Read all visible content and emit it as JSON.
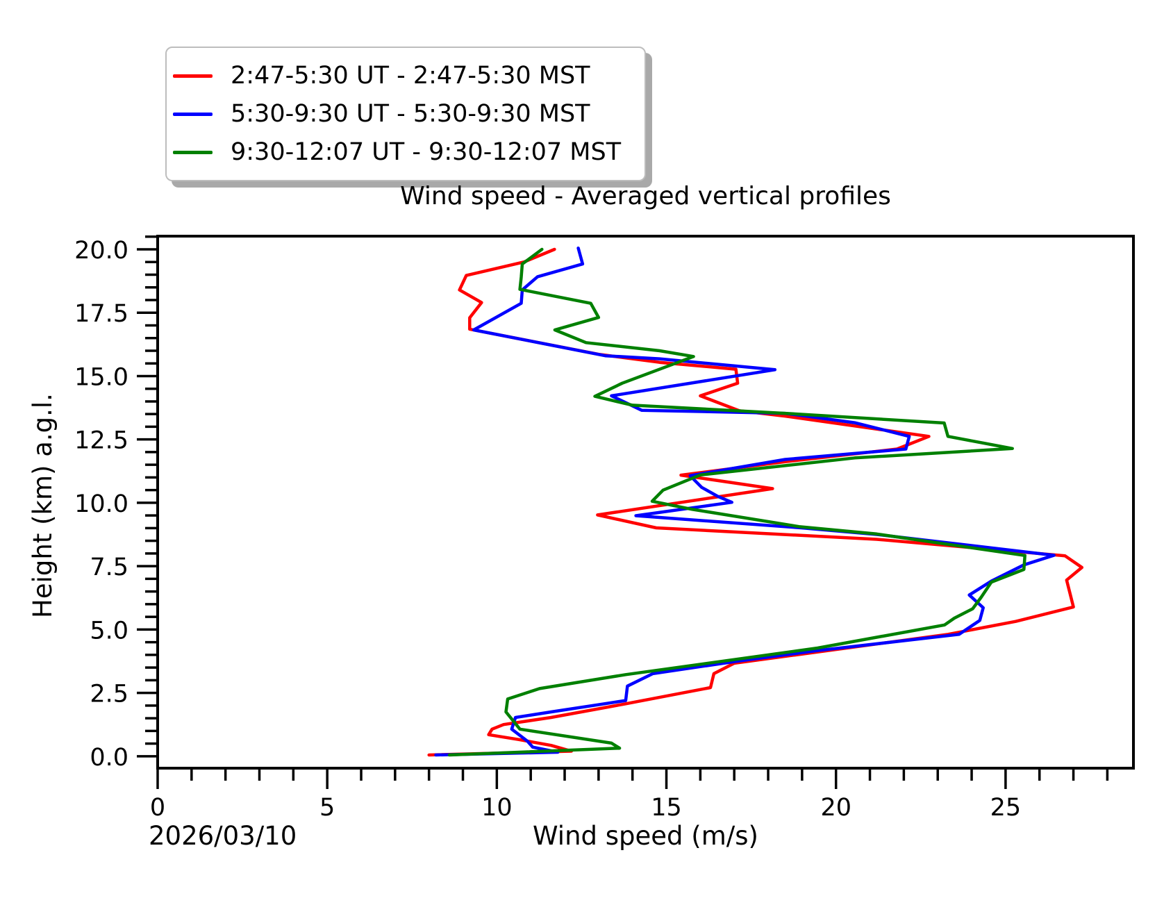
{
  "figure": {
    "title": "Wind speed - Averaged vertical profiles",
    "xlabel": "Wind speed (m/s)",
    "ylabel": "Height (km) a.g.l.",
    "date_label": "2026/03/10"
  },
  "legend": {
    "entries": [
      {
        "label": "2:47-5:30 UT - 2:47-5:30 MST",
        "color": "#ff0000"
      },
      {
        "label": "5:30-9:30 UT - 5:30-9:30 MST",
        "color": "#0000ff"
      },
      {
        "label": "9:30-12:07 UT - 9:30-12:07 MST",
        "color": "#008000"
      }
    ]
  },
  "chart_data": {
    "type": "line",
    "title": "Wind speed - Averaged vertical profiles",
    "xlabel": "Wind speed (m/s)",
    "ylabel": "Height (km) a.g.l.",
    "date": "2026/03/10",
    "xlim": [
      0,
      28.77
    ],
    "ylim": [
      -0.47,
      20.52
    ],
    "x_major_ticks": [
      0,
      5,
      10,
      15,
      20,
      25
    ],
    "x_minor_step": 1,
    "y_major_ticks": [
      0.0,
      2.5,
      5.0,
      7.5,
      10.0,
      12.5,
      15.0,
      17.5,
      20.0
    ],
    "y_minor_step": 0.5,
    "grid": false,
    "legend_position": "upper-left-outside",
    "series": [
      {
        "name": "2:47-5:30 UT - 2:47-5:30 MST",
        "color": "#ff0000",
        "points": [
          [
            8.0,
            0.05
          ],
          [
            12.2,
            0.2
          ],
          [
            11.6,
            0.43
          ],
          [
            10.65,
            0.66
          ],
          [
            9.76,
            0.85
          ],
          [
            9.86,
            1.07
          ],
          [
            10.2,
            1.25
          ],
          [
            11.6,
            1.53
          ],
          [
            13.8,
            2.07
          ],
          [
            16.3,
            2.71
          ],
          [
            16.4,
            3.26
          ],
          [
            17.0,
            3.67
          ],
          [
            23.3,
            4.81
          ],
          [
            25.3,
            5.32
          ],
          [
            27.0,
            5.89
          ],
          [
            26.8,
            6.95
          ],
          [
            27.25,
            7.45
          ],
          [
            26.75,
            7.91
          ],
          [
            21.2,
            8.56
          ],
          [
            14.7,
            9.01
          ],
          [
            12.97,
            9.52
          ],
          [
            18.13,
            10.56
          ],
          [
            15.43,
            11.09
          ],
          [
            18.5,
            11.62
          ],
          [
            21.8,
            12.12
          ],
          [
            22.74,
            12.62
          ],
          [
            18.5,
            13.42
          ],
          [
            17.15,
            13.63
          ],
          [
            16.0,
            14.22
          ],
          [
            17.1,
            14.72
          ],
          [
            17.05,
            15.27
          ],
          [
            14.8,
            15.54
          ],
          [
            13.0,
            15.86
          ],
          [
            9.2,
            16.85
          ],
          [
            9.2,
            17.3
          ],
          [
            9.55,
            17.9
          ],
          [
            8.9,
            18.4
          ],
          [
            9.1,
            18.97
          ],
          [
            10.8,
            19.5
          ],
          [
            11.7,
            20.0
          ]
        ]
      },
      {
        "name": "5:30-9:30 UT - 5:30-9:30 MST",
        "color": "#0000ff",
        "points": [
          [
            8.2,
            0.05
          ],
          [
            11.8,
            0.16
          ],
          [
            11.06,
            0.36
          ],
          [
            10.9,
            0.6
          ],
          [
            10.44,
            1.07
          ],
          [
            10.55,
            1.53
          ],
          [
            11.6,
            1.75
          ],
          [
            12.97,
            2.03
          ],
          [
            13.8,
            2.2
          ],
          [
            13.85,
            2.77
          ],
          [
            14.6,
            3.26
          ],
          [
            17.14,
            3.76
          ],
          [
            19.46,
            4.17
          ],
          [
            23.63,
            4.81
          ],
          [
            24.24,
            5.36
          ],
          [
            24.34,
            5.86
          ],
          [
            23.93,
            6.36
          ],
          [
            24.58,
            6.91
          ],
          [
            25.54,
            7.55
          ],
          [
            26.43,
            7.93
          ],
          [
            21.2,
            8.75
          ],
          [
            18.98,
            9.01
          ],
          [
            14.1,
            9.49
          ],
          [
            16.93,
            10.02
          ],
          [
            16.52,
            10.25
          ],
          [
            16.04,
            10.61
          ],
          [
            15.7,
            11.07
          ],
          [
            18.5,
            11.71
          ],
          [
            22.06,
            12.12
          ],
          [
            22.16,
            12.62
          ],
          [
            20.55,
            13.16
          ],
          [
            18.5,
            13.53
          ],
          [
            14.27,
            13.65
          ],
          [
            13.38,
            14.22
          ],
          [
            18.2,
            15.25
          ],
          [
            14.8,
            15.68
          ],
          [
            13.2,
            15.8
          ],
          [
            9.32,
            16.82
          ],
          [
            10.72,
            17.87
          ],
          [
            10.75,
            18.4
          ],
          [
            11.2,
            18.92
          ],
          [
            12.53,
            19.42
          ],
          [
            12.4,
            20.05
          ]
        ]
      },
      {
        "name": "9:30-12:07 UT - 9:30-12:07 MST",
        "color": "#008000",
        "points": [
          [
            8.6,
            0.05
          ],
          [
            13.62,
            0.32
          ],
          [
            13.38,
            0.52
          ],
          [
            10.68,
            1.07
          ],
          [
            10.27,
            1.75
          ],
          [
            10.32,
            2.26
          ],
          [
            11.26,
            2.67
          ],
          [
            13.8,
            3.22
          ],
          [
            19.46,
            4.27
          ],
          [
            23.2,
            5.18
          ],
          [
            23.49,
            5.45
          ],
          [
            24.03,
            5.82
          ],
          [
            24.28,
            6.27
          ],
          [
            24.58,
            6.87
          ],
          [
            25.54,
            7.37
          ],
          [
            25.57,
            7.92
          ],
          [
            21.2,
            8.77
          ],
          [
            18.91,
            9.06
          ],
          [
            15.77,
            9.74
          ],
          [
            14.58,
            10.06
          ],
          [
            14.9,
            10.5
          ],
          [
            16.0,
            11.1
          ],
          [
            20.55,
            11.77
          ],
          [
            25.2,
            12.14
          ],
          [
            23.3,
            12.62
          ],
          [
            23.19,
            13.15
          ],
          [
            18.5,
            13.53
          ],
          [
            14.0,
            13.85
          ],
          [
            12.89,
            14.2
          ],
          [
            13.7,
            14.72
          ],
          [
            15.8,
            15.77
          ],
          [
            14.8,
            16.0
          ],
          [
            12.63,
            16.32
          ],
          [
            11.71,
            16.82
          ],
          [
            13.0,
            17.31
          ],
          [
            12.77,
            17.87
          ],
          [
            10.68,
            18.42
          ],
          [
            10.72,
            18.9
          ],
          [
            10.75,
            19.42
          ],
          [
            11.33,
            20.0
          ]
        ]
      }
    ]
  }
}
